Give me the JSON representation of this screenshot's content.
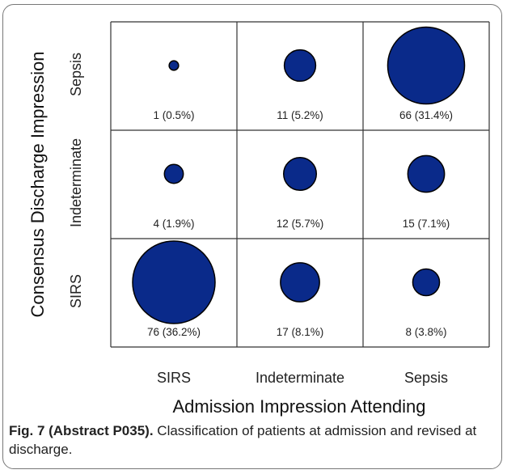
{
  "chart_data": {
    "type": "bubble",
    "xlabel": "Admission Impression Attending",
    "ylabel": "Consensus Discharge Impression",
    "x_categories": [
      "SIRS",
      "Indeterminate",
      "Sepsis"
    ],
    "y_categories": [
      "Sepsis",
      "Indeterminate",
      "SIRS"
    ],
    "cells": [
      {
        "x": "SIRS",
        "y": "Sepsis",
        "count": 1,
        "label": "1 (0.5%)"
      },
      {
        "x": "Indeterminate",
        "y": "Sepsis",
        "count": 11,
        "label": "11 (5.2%)"
      },
      {
        "x": "Sepsis",
        "y": "Sepsis",
        "count": 66,
        "label": "66 (31.4%)"
      },
      {
        "x": "SIRS",
        "y": "Indeterminate",
        "count": 4,
        "label": "4 (1.9%)"
      },
      {
        "x": "Indeterminate",
        "y": "Indeterminate",
        "count": 12,
        "label": "12 (5.7%)"
      },
      {
        "x": "Sepsis",
        "y": "Indeterminate",
        "count": 15,
        "label": "15 (7.1%)"
      },
      {
        "x": "SIRS",
        "y": "SIRS",
        "count": 76,
        "label": "76 (36.2%)"
      },
      {
        "x": "Indeterminate",
        "y": "SIRS",
        "count": 17,
        "label": "17 (8.1%)"
      },
      {
        "x": "Sepsis",
        "y": "SIRS",
        "count": 8,
        "label": "8 (3.8%)"
      }
    ],
    "bubble_color": "#0a2a8a",
    "grid": true
  },
  "caption": {
    "label": "Fig. 7 (Abstract P035).",
    "text": " Classification of patients at admission and revised at discharge."
  }
}
